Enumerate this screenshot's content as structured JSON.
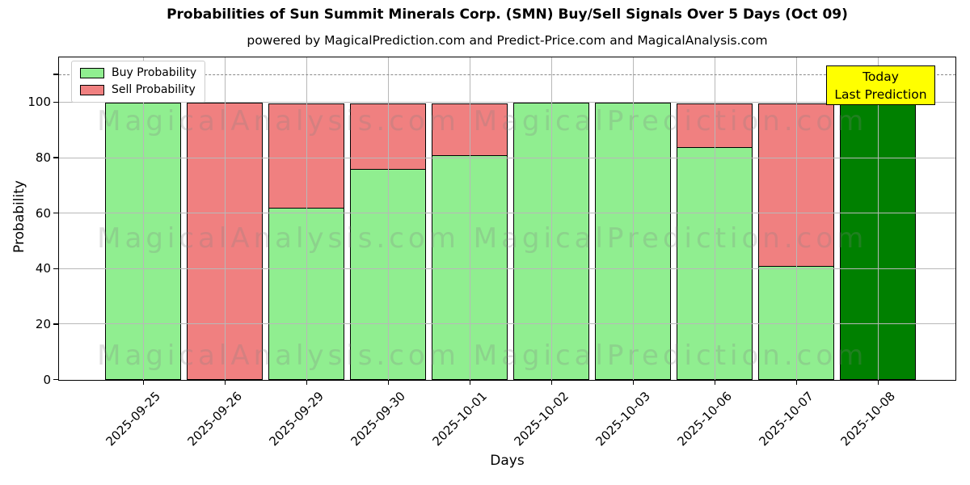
{
  "chart_data": {
    "type": "bar",
    "stacked": true,
    "title": "Probabilities of Sun Summit Minerals Corp. (SMN) Buy/Sell Signals Over 5 Days (Oct 09)",
    "subtitle": "powered by MagicalPrediction.com and Predict-Price.com and MagicalAnalysis.com",
    "xlabel": "Days",
    "ylabel": "Probability",
    "categories": [
      "2025-09-25",
      "2025-09-26",
      "2025-09-29",
      "2025-09-30",
      "2025-10-01",
      "2025-10-02",
      "2025-10-03",
      "2025-10-06",
      "2025-10-07",
      "2025-10-08"
    ],
    "series": [
      {
        "name": "Buy Probability",
        "color": "#90EE90",
        "values": [
          100,
          0,
          62,
          76,
          81,
          100,
          100,
          84,
          41,
          100
        ]
      },
      {
        "name": "Sell Probability",
        "color": "#F08080",
        "values": [
          0,
          100,
          38,
          24,
          19,
          0,
          0,
          16,
          59,
          0
        ]
      }
    ],
    "today_bar": {
      "index": 9,
      "category": "2025-10-08",
      "color": "#008000",
      "label_line1": "Today",
      "label_line2": "Last Prediction",
      "box_color": "#FFFF00"
    },
    "y_ticks": [
      0,
      20,
      40,
      60,
      80,
      100
    ],
    "ylim": [
      0,
      116
    ],
    "dashed_hline": 110,
    "grid": true,
    "legend_position": "upper left",
    "watermarks": [
      "MagicalAnalysis.com",
      "MagicalPrediction.com"
    ],
    "bar_edge_color": "#000000"
  }
}
